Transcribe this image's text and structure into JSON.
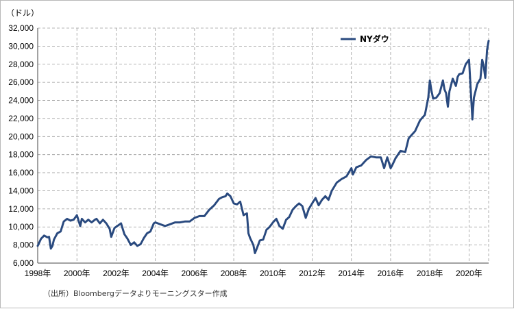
{
  "chart_data": {
    "type": "line",
    "title": "",
    "unit_label": "（ドル）",
    "source_note": "（出所）Bloombergデータよりモーニングスター作成",
    "xlabel": "",
    "ylabel": "",
    "ylim": [
      6000,
      32000
    ],
    "y_ticks": [
      6000,
      8000,
      10000,
      12000,
      14000,
      16000,
      18000,
      20000,
      22000,
      24000,
      26000,
      28000,
      30000,
      32000
    ],
    "y_tick_labels": [
      "6,000",
      "8,000",
      "10,000",
      "12,000",
      "14,000",
      "16,000",
      "18,000",
      "20,000",
      "22,000",
      "24,000",
      "26,000",
      "28,000",
      "30,000",
      "32,000"
    ],
    "xlim": [
      1998.0,
      2021.0
    ],
    "x_ticks": [
      1998,
      2000,
      2002,
      2004,
      2006,
      2008,
      2010,
      2012,
      2014,
      2016,
      2018,
      2020
    ],
    "x_tick_labels": [
      "1998年",
      "2000年",
      "2002年",
      "2004年",
      "2006年",
      "2008年",
      "2010年",
      "2012年",
      "2014年",
      "2016年",
      "2018年",
      "2020年"
    ],
    "grid": true,
    "legend_position": "top-right",
    "series": [
      {
        "name": "NYダウ",
        "color": "#2a4a7f",
        "x": [
          1998.0,
          1998.17,
          1998.33,
          1998.5,
          1998.58,
          1998.67,
          1998.75,
          1998.83,
          1999.0,
          1999.17,
          1999.33,
          1999.5,
          1999.67,
          1999.83,
          2000.0,
          2000.17,
          2000.25,
          2000.42,
          2000.58,
          2000.75,
          2000.92,
          2001.0,
          2001.17,
          2001.33,
          2001.5,
          2001.67,
          2001.75,
          2001.92,
          2002.0,
          2002.25,
          2002.42,
          2002.58,
          2002.75,
          2002.92,
          2003.08,
          2003.25,
          2003.42,
          2003.58,
          2003.75,
          2003.92,
          2004.0,
          2004.25,
          2004.5,
          2004.75,
          2005.0,
          2005.25,
          2005.5,
          2005.75,
          2006.0,
          2006.25,
          2006.5,
          2006.75,
          2007.0,
          2007.25,
          2007.42,
          2007.58,
          2007.67,
          2007.83,
          2008.0,
          2008.17,
          2008.33,
          2008.5,
          2008.67,
          2008.75,
          2008.83,
          2009.0,
          2009.08,
          2009.17,
          2009.33,
          2009.5,
          2009.67,
          2009.83,
          2010.0,
          2010.17,
          2010.33,
          2010.5,
          2010.67,
          2010.83,
          2011.0,
          2011.17,
          2011.33,
          2011.5,
          2011.67,
          2011.83,
          2012.0,
          2012.17,
          2012.33,
          2012.5,
          2012.67,
          2012.83,
          2013.0,
          2013.25,
          2013.5,
          2013.75,
          2014.0,
          2014.08,
          2014.25,
          2014.5,
          2014.75,
          2015.0,
          2015.25,
          2015.5,
          2015.67,
          2015.83,
          2016.0,
          2016.08,
          2016.25,
          2016.5,
          2016.75,
          2016.92,
          2017.0,
          2017.25,
          2017.5,
          2017.75,
          2017.92,
          2018.0,
          2018.08,
          2018.17,
          2018.33,
          2018.5,
          2018.67,
          2018.75,
          2018.83,
          2018.92,
          2019.0,
          2019.17,
          2019.33,
          2019.42,
          2019.5,
          2019.67,
          2019.83,
          2020.0,
          2020.08,
          2020.17,
          2020.25,
          2020.42,
          2020.58,
          2020.67,
          2020.75,
          2020.83,
          2020.92,
          2021.0
        ],
        "values": [
          7900,
          8700,
          9050,
          8850,
          8900,
          7600,
          7900,
          8600,
          9300,
          9500,
          10600,
          10900,
          10700,
          10800,
          11300,
          10100,
          10900,
          10500,
          10800,
          10500,
          10800,
          10900,
          10400,
          10800,
          10400,
          9800,
          8900,
          9900,
          10000,
          10400,
          9200,
          8700,
          8000,
          8300,
          7900,
          8100,
          8800,
          9300,
          9500,
          10400,
          10500,
          10300,
          10100,
          10300,
          10500,
          10500,
          10600,
          10600,
          11000,
          11200,
          11200,
          11900,
          12400,
          13100,
          13300,
          13400,
          13700,
          13400,
          12600,
          12500,
          12800,
          11300,
          11500,
          9300,
          8800,
          8000,
          7100,
          7600,
          8500,
          8600,
          9700,
          10000,
          10500,
          10900,
          10100,
          9800,
          10800,
          11100,
          11900,
          12300,
          12600,
          12300,
          11000,
          12000,
          12600,
          13200,
          12400,
          13000,
          13400,
          13000,
          14000,
          14900,
          15300,
          15600,
          16500,
          15800,
          16600,
          16800,
          17400,
          17800,
          17700,
          17700,
          16500,
          17700,
          16500,
          16800,
          17600,
          18400,
          18300,
          19800,
          20000,
          20600,
          21800,
          22400,
          24300,
          26200,
          25100,
          24200,
          24300,
          24800,
          26200,
          25200,
          24800,
          23300,
          25000,
          26400,
          25600,
          26600,
          26900,
          27000,
          28000,
          28500,
          25400,
          21900,
          24300,
          25800,
          26400,
          28500,
          27800,
          26500,
          29600,
          30600
        ]
      }
    ]
  }
}
